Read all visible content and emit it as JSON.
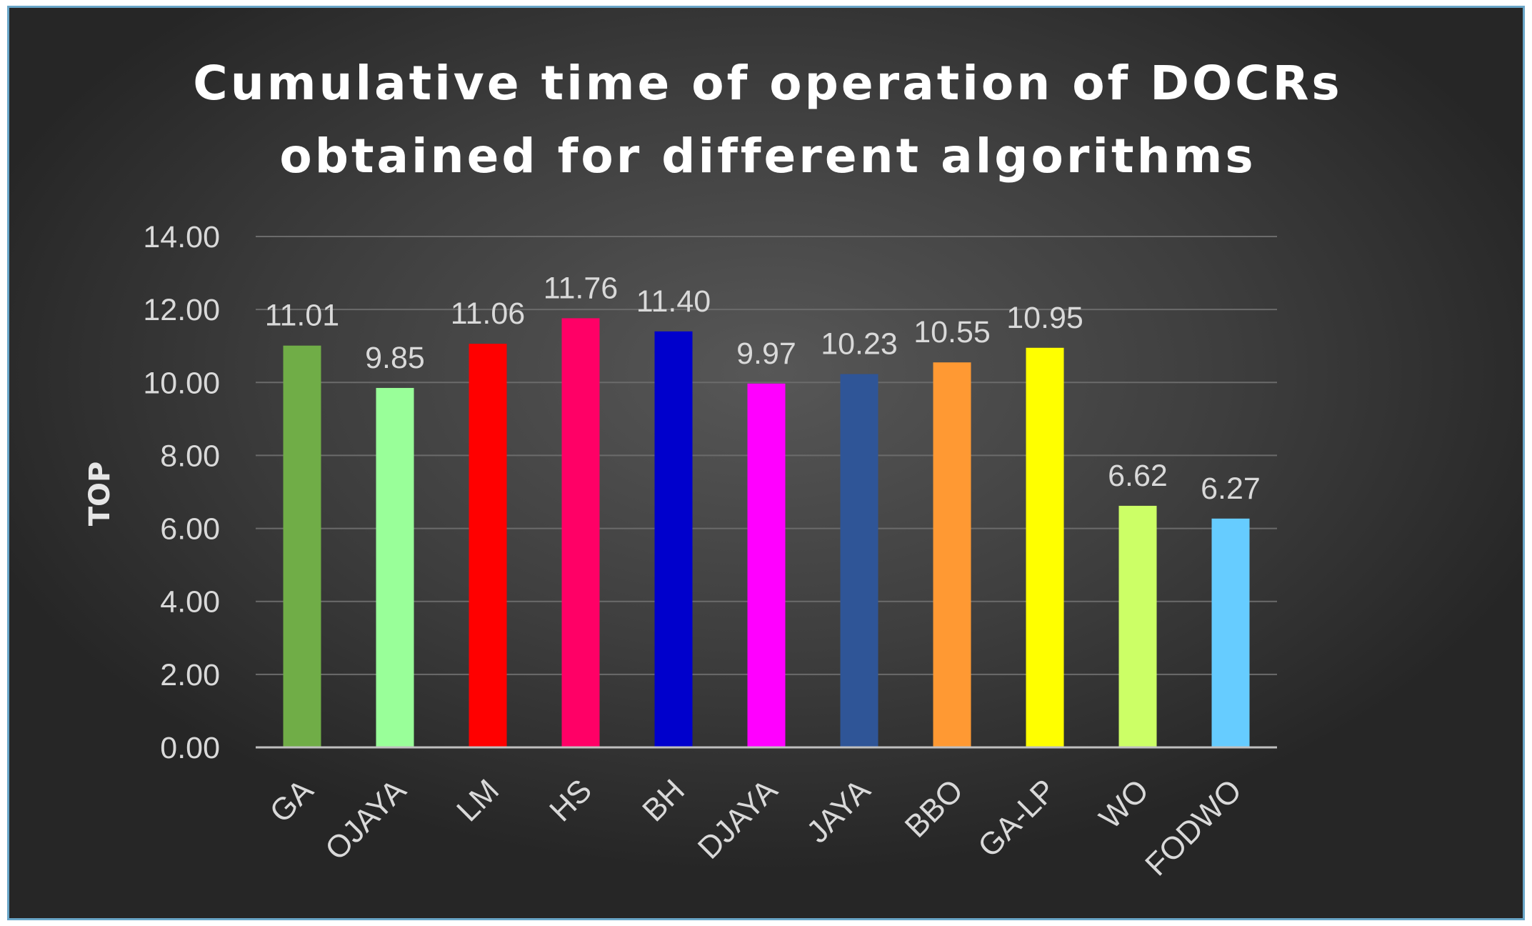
{
  "chart_data": {
    "type": "bar",
    "title_lines": [
      "Cumulative time of operation of DOCRs",
      "obtained for different algorithms"
    ],
    "ylabel": "TOP",
    "xlabel": "",
    "ylim": [
      0,
      14
    ],
    "yticks": [
      0,
      2,
      4,
      6,
      8,
      10,
      12,
      14
    ],
    "ytick_labels": [
      "0.00",
      "2.00",
      "4.00",
      "6.00",
      "8.00",
      "10.00",
      "12.00",
      "14.00"
    ],
    "grid": true,
    "legend": "none",
    "categories": [
      "GA",
      "OJAYA",
      "LM",
      "HS",
      "BH",
      "DJAYA",
      "JAYA",
      "BBO",
      "GA-LP",
      "WO",
      "FODWO"
    ],
    "values": [
      11.01,
      9.85,
      11.06,
      11.76,
      11.4,
      9.97,
      10.23,
      10.55,
      10.95,
      6.62,
      6.27
    ],
    "data_labels": [
      "11.01",
      "9.85",
      "11.06",
      "11.76",
      "11.40",
      "9.97",
      "10.23",
      "10.55",
      "10.95",
      "6.62",
      "6.27"
    ],
    "colors": [
      "#70ad47",
      "#99ff99",
      "#ff0000",
      "#ff0066",
      "#0000cc",
      "#ff00ff",
      "#2f5597",
      "#ff9933",
      "#ffff00",
      "#ccff66",
      "#66ccff"
    ]
  }
}
